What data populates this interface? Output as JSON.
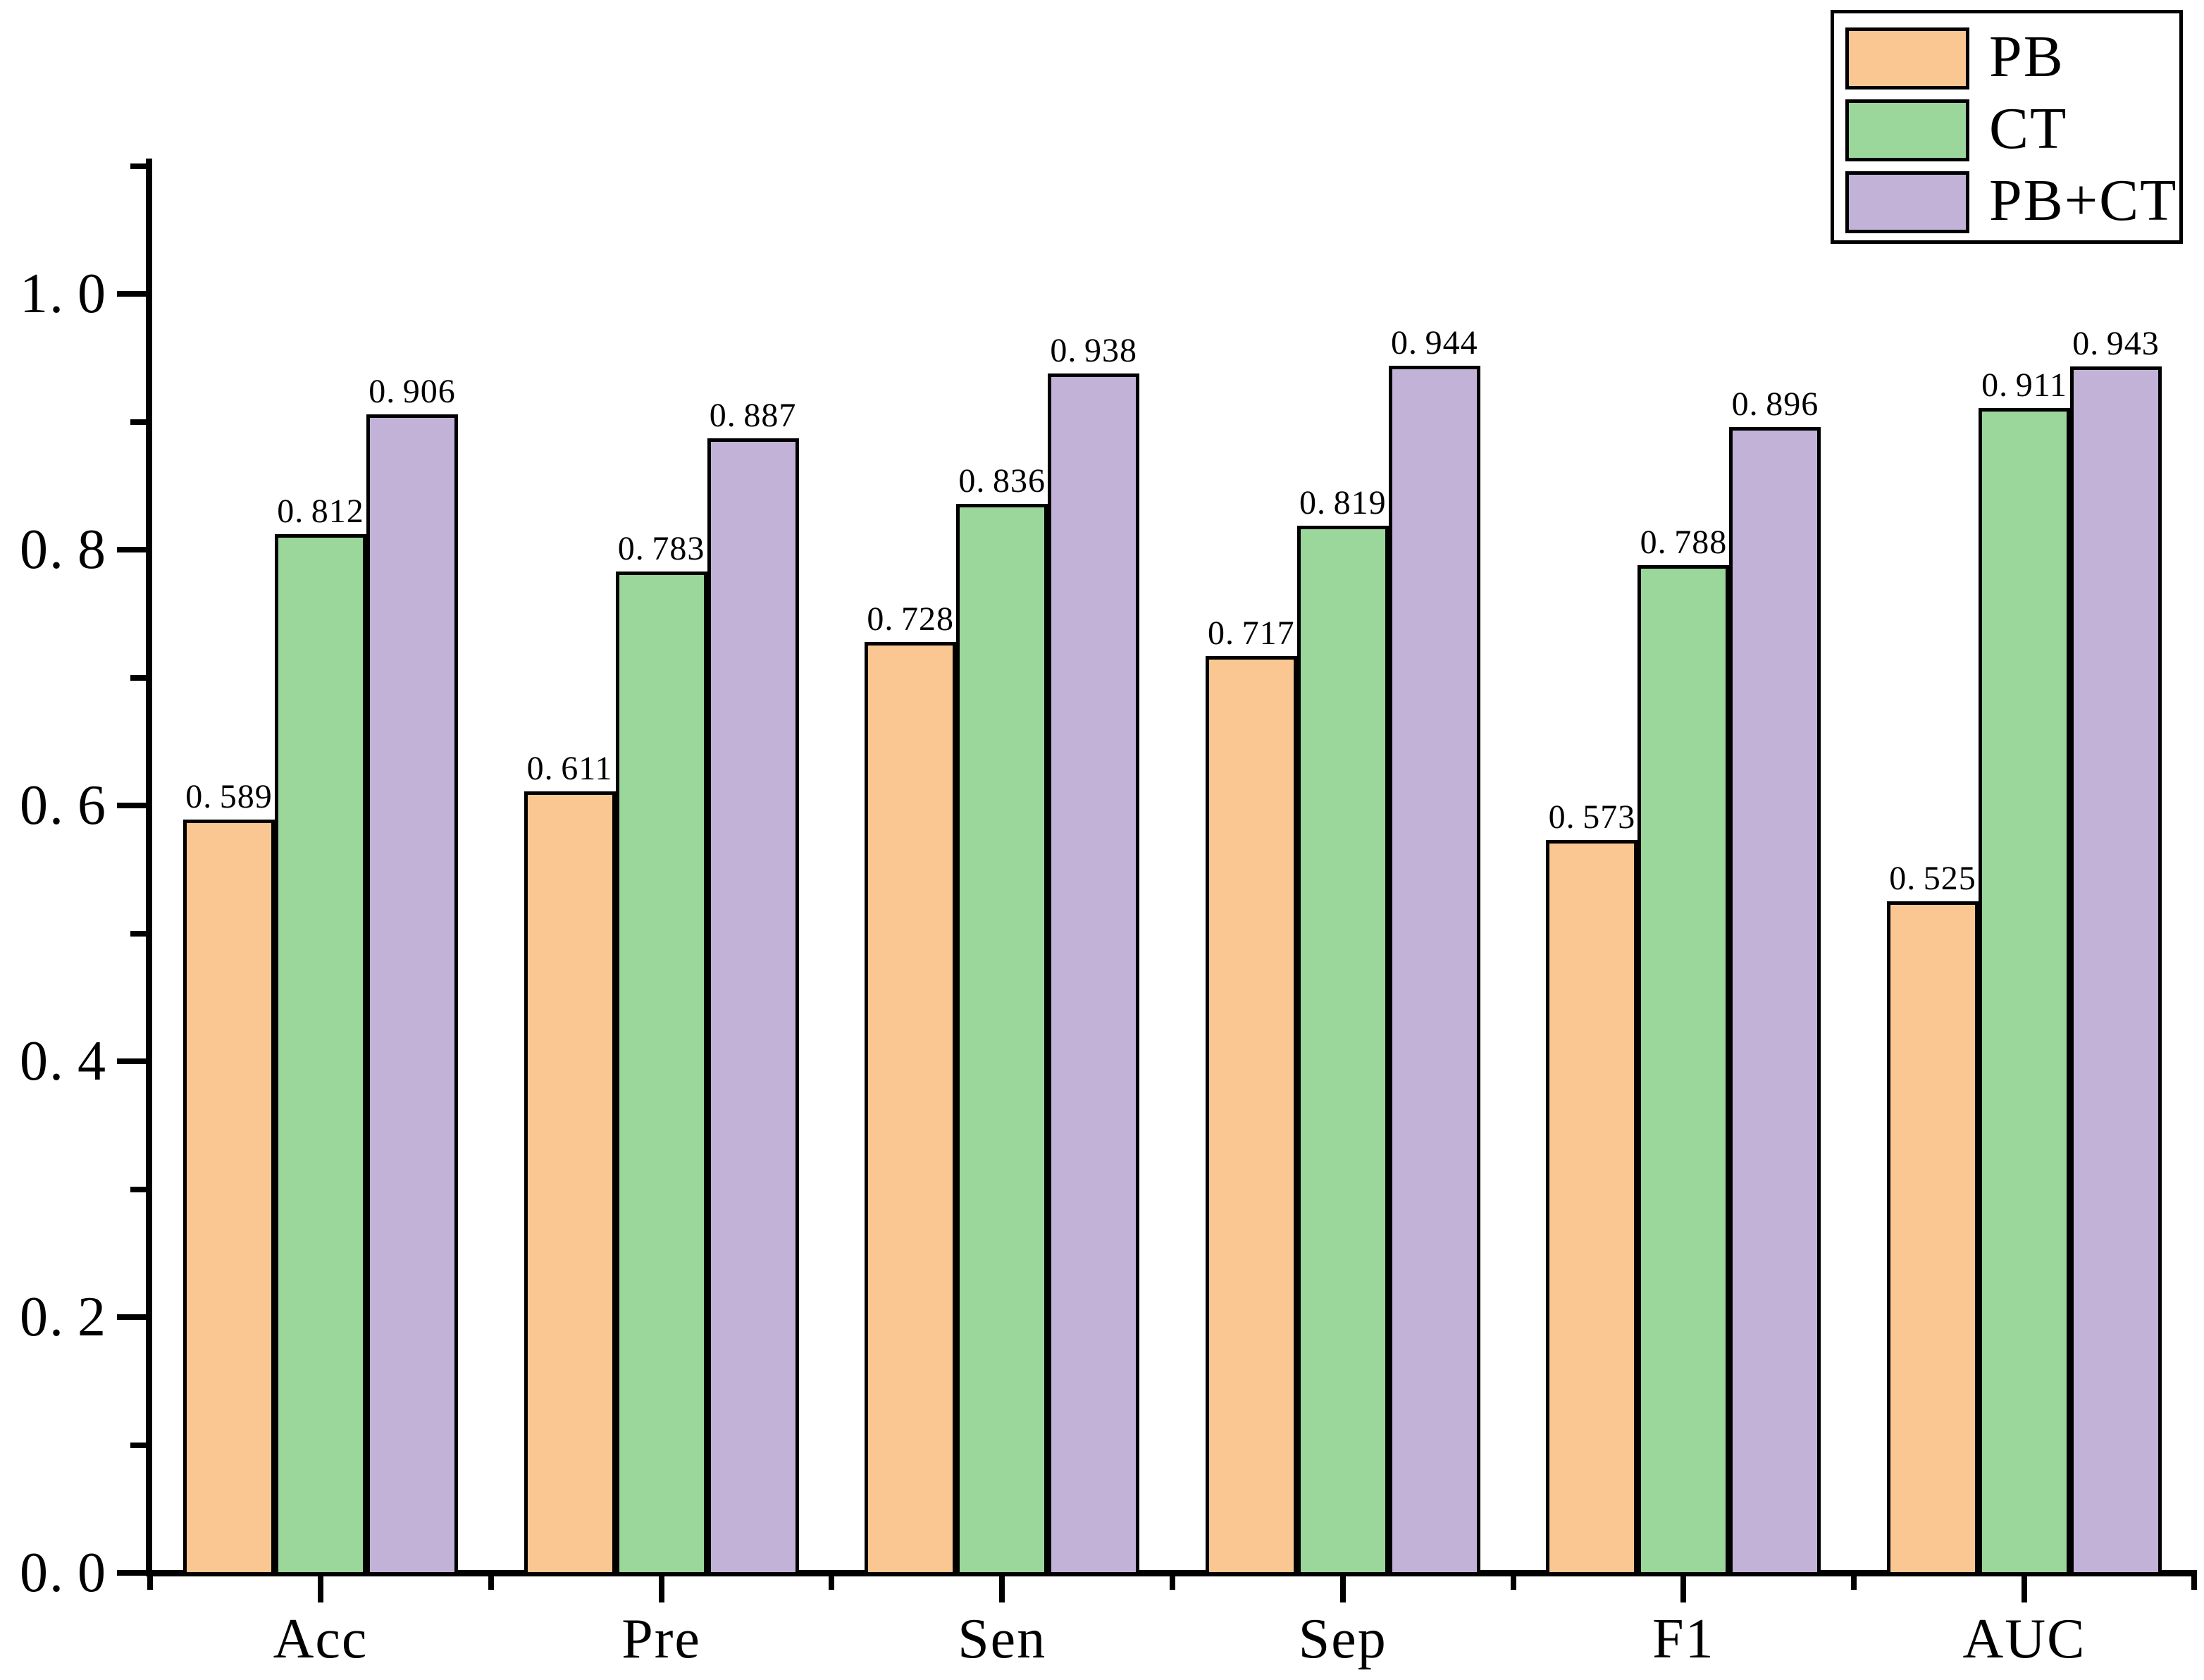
{
  "chart_data": {
    "type": "bar",
    "categories": [
      "Acc",
      "Pre",
      "Sen",
      "Sep",
      "F1",
      "AUC"
    ],
    "series": [
      {
        "name": "PB",
        "color": "#FAC792",
        "values": [
          0.589,
          0.611,
          0.728,
          0.717,
          0.573,
          0.525
        ],
        "labels": [
          "0.589",
          "0.611",
          "0.728",
          "0.717",
          "0.573",
          "0.525"
        ]
      },
      {
        "name": "CT",
        "color": "#9BD69B",
        "values": [
          0.812,
          0.783,
          0.836,
          0.819,
          0.788,
          0.911
        ],
        "labels": [
          "0.812",
          "0.783",
          "0.836",
          "0.819",
          "0.788",
          "0.911"
        ]
      },
      {
        "name": "PB+CT",
        "color": "#C2B2D8",
        "values": [
          0.906,
          0.887,
          0.938,
          0.944,
          0.896,
          0.943
        ],
        "labels": [
          "0.906",
          "0.887",
          "0.938",
          "0.944",
          "0.896",
          "0.943"
        ]
      }
    ],
    "title": "",
    "xlabel": "",
    "ylabel": "",
    "ylim": [
      0.0,
      1.105
    ],
    "yticks_major": {
      "values": [
        0.0,
        0.2,
        0.4,
        0.6,
        0.8,
        1.0
      ],
      "labels": [
        "0.0",
        "0.2",
        "0.4",
        "0.6",
        "0.8",
        "1.0"
      ]
    },
    "yticks_minor": [
      0.1,
      0.3,
      0.5,
      0.7,
      0.9,
      1.1
    ],
    "grid": "off",
    "legend_position": "top-right",
    "bar_edge_color": "#000000"
  }
}
